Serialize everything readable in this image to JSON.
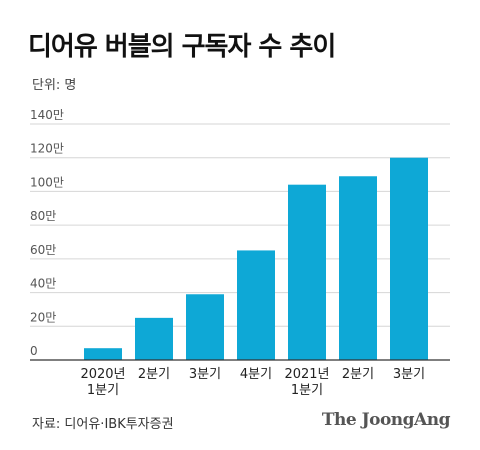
{
  "header": {
    "title": "디어유 버블의 구독자 수 추이",
    "unit": "단위: 명"
  },
  "footer": {
    "source": "자료: 디어유·IBK투자증권",
    "brand": "The JoongAng"
  },
  "colors": {
    "bar": "#0ea8d6",
    "grid": "#d6d6d6",
    "axis": "#333333",
    "tick_text": "#555555"
  },
  "chart_data": {
    "type": "bar",
    "title": "디어유 버블의 구독자 수 추이",
    "unit_label": "단위: 명",
    "categories": [
      [
        "2020년",
        "1분기"
      ],
      [
        "2분기"
      ],
      [
        "3분기"
      ],
      [
        "4분기"
      ],
      [
        "2021년",
        "1분기"
      ],
      [
        "2분기"
      ],
      [
        "3분기"
      ]
    ],
    "values": [
      70000,
      250000,
      390000,
      650000,
      1040000,
      1090000,
      1200000
    ],
    "ylim": [
      0,
      1400000
    ],
    "yticks": [
      0,
      200000,
      400000,
      600000,
      800000,
      1000000,
      1200000,
      1400000
    ],
    "ytick_labels": [
      "0",
      "20만",
      "40만",
      "60만",
      "80만",
      "100만",
      "120만",
      "140만"
    ],
    "grid": true,
    "legend": "none"
  }
}
